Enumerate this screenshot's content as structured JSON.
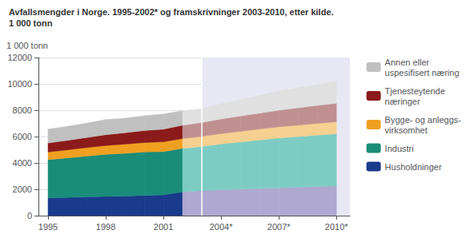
{
  "chart_data": {
    "type": "area",
    "stacked": true,
    "title": "Avfallsmengder i Norge. 1995-2002* og framskrivninger 2003-2010, etter kilde.",
    "subtitle": "1 000 tonn",
    "ylabel": "1 000 tonn",
    "x": [
      1995,
      1996,
      1997,
      1998,
      1999,
      2000,
      2001,
      2002,
      2003,
      2004,
      2005,
      2006,
      2007,
      2008,
      2009,
      2010
    ],
    "xlim": [
      1994.5,
      2010.7
    ],
    "xticks": [
      1995,
      1998,
      2001,
      {
        "value": 2004,
        "label": "2004*"
      },
      {
        "value": 2007,
        "label": "2007*"
      },
      {
        "value": 2010,
        "label": "2010*"
      }
    ],
    "ylim": [
      0,
      12000
    ],
    "yticks": [
      0,
      2000,
      4000,
      6000,
      8000,
      10000,
      12000
    ],
    "grid": true,
    "legend": "right",
    "shaded": {
      "x": [
        2003,
        2011
      ],
      "color": "#e8e8f4"
    },
    "divider": {
      "x": 2003,
      "color": "#ffffff"
    },
    "series": [
      {
        "name": "Husholdninger",
        "color": "#1a3a8c",
        "values": [
          1350,
          1380,
          1420,
          1450,
          1480,
          1530,
          1580,
          1800,
          1900,
          1960,
          2010,
          2060,
          2110,
          2160,
          2210,
          2260
        ],
        "colors": [
          "#1a3a8c",
          "#1a3a8c",
          "#1a3a8c",
          "#1a3a8c",
          "#1a3a8c",
          "#1a3a8c",
          "#1a3a8c",
          "#1a3a8c",
          "#afa8d0",
          "#afa8d0",
          "#afa8d0",
          "#afa8d0",
          "#afa8d0",
          "#afa8d0",
          "#afa8d0",
          "#afa8d0"
        ]
      },
      {
        "name": "Industri",
        "color": "#1a8c7a",
        "values": [
          2900,
          3000,
          3100,
          3200,
          3250,
          3300,
          3280,
          3300,
          3350,
          3480,
          3580,
          3680,
          3780,
          3840,
          3900,
          3950
        ],
        "colors": [
          "#1a8c7a",
          "#1a8c7a",
          "#1a8c7a",
          "#1a8c7a",
          "#1a8c7a",
          "#1a8c7a",
          "#1a8c7a",
          "#1a8c7a",
          "#7dccc4",
          "#7dccc4",
          "#7dccc4",
          "#7dccc4",
          "#7dccc4",
          "#7dccc4",
          "#7dccc4",
          "#7dccc4"
        ]
      },
      {
        "name": "Bygge- og anleggs-\nvirksomhet",
        "color": "#f0a020",
        "values": [
          580,
          610,
          640,
          670,
          700,
          720,
          740,
          750,
          760,
          790,
          810,
          830,
          850,
          870,
          890,
          910
        ],
        "colors": [
          "#f0a020",
          "#f0a020",
          "#f0a020",
          "#f0a020",
          "#f0a020",
          "#f0a020",
          "#f0a020",
          "#f0a020",
          "#f5d090",
          "#f5d090",
          "#f5d090",
          "#f5d090",
          "#f5d090",
          "#f5d090",
          "#f5d090",
          "#f5d090"
        ]
      },
      {
        "name": "Tjenesteytende\nnæringer",
        "color": "#8b1a1a",
        "values": [
          680,
          720,
          760,
          820,
          860,
          910,
          960,
          1010,
          1060,
          1110,
          1160,
          1210,
          1260,
          1310,
          1360,
          1410
        ],
        "colors": [
          "#8b1a1a",
          "#8b1a1a",
          "#8b1a1a",
          "#8b1a1a",
          "#8b1a1a",
          "#8b1a1a",
          "#8b1a1a",
          "#8b1a1a",
          "#c09090",
          "#c09090",
          "#c09090",
          "#c09090",
          "#c09090",
          "#c09090",
          "#c09090",
          "#c09090"
        ]
      },
      {
        "name": "Annen eller\nuspesifisert næring",
        "color": "#c0c0c0",
        "values": [
          1050,
          1060,
          1100,
          1150,
          1100,
          1120,
          1150,
          1100,
          1050,
          1150,
          1250,
          1350,
          1450,
          1520,
          1580,
          1640
        ],
        "colors": [
          "#c0c0c0",
          "#c0c0c0",
          "#c0c0c0",
          "#c0c0c0",
          "#c0c0c0",
          "#c0c0c0",
          "#c0c0c0",
          "#c0c0c0",
          "#e0e0e0",
          "#e0e0e0",
          "#e0e0e0",
          "#e0e0e0",
          "#e0e0e0",
          "#e0e0e0",
          "#e0e0e0",
          "#e0e0e0"
        ]
      }
    ]
  }
}
